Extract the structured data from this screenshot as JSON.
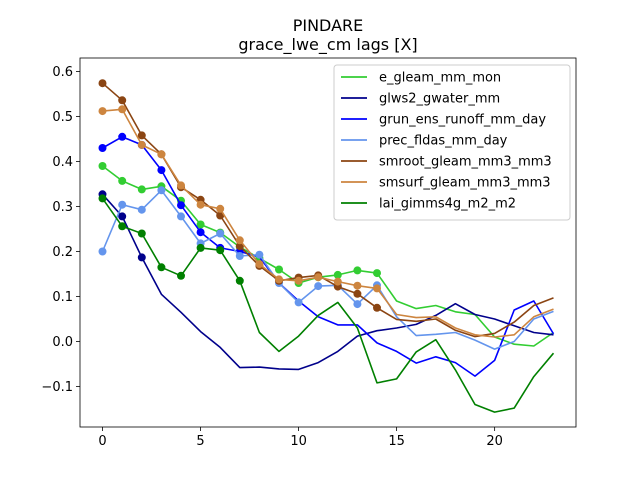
{
  "chart_data": {
    "type": "line",
    "title": "PINDARE",
    "subtitle": "grace_lwe_cm lags [X]",
    "xlabel": "",
    "ylabel": "",
    "xlim": [
      -1.15,
      24.15
    ],
    "ylim": [
      -0.19,
      0.63
    ],
    "xticks": [
      0,
      5,
      10,
      15,
      20
    ],
    "xtick_labels": [
      "0",
      "5",
      "10",
      "15",
      "20"
    ],
    "yticks": [
      -0.1,
      0.0,
      0.1,
      0.2,
      0.3,
      0.4,
      0.5,
      0.6
    ],
    "ytick_labels": [
      "−0.1",
      "0.0",
      "0.1",
      "0.2",
      "0.3",
      "0.4",
      "0.5",
      "0.6"
    ],
    "grid": false,
    "legend_position": "upper right",
    "x": [
      0,
      1,
      2,
      3,
      4,
      5,
      6,
      7,
      8,
      9,
      10,
      11,
      12,
      13,
      14,
      15,
      16,
      17,
      18,
      19,
      20,
      21,
      22,
      23
    ],
    "series": [
      {
        "name": "e_gleam_mm_mon",
        "color": "#32cd32",
        "marker_count": 15,
        "values": [
          0.39,
          0.357,
          0.338,
          0.345,
          0.313,
          0.26,
          0.242,
          0.21,
          0.185,
          0.16,
          0.13,
          0.143,
          0.148,
          0.158,
          0.152,
          0.09,
          0.073,
          0.08,
          0.066,
          0.06,
          0.01,
          -0.006,
          -0.01,
          0.02
        ]
      },
      {
        "name": "glws2_gwater_mm",
        "color": "#00008b",
        "marker_count": 3,
        "values": [
          0.327,
          0.278,
          0.187,
          0.105,
          0.065,
          0.022,
          -0.013,
          -0.058,
          -0.057,
          -0.061,
          -0.062,
          -0.047,
          -0.022,
          0.012,
          0.024,
          0.03,
          0.038,
          0.058,
          0.084,
          0.06,
          0.05,
          0.035,
          0.02,
          0.015
        ]
      },
      {
        "name": "grun_ens_runoff_mm_day",
        "color": "#0000ff",
        "marker_count": 8,
        "values": [
          0.43,
          0.455,
          0.437,
          0.381,
          0.303,
          0.243,
          0.208,
          0.2,
          0.188,
          0.13,
          0.09,
          0.055,
          0.037,
          0.037,
          -0.003,
          -0.022,
          -0.048,
          -0.034,
          -0.047,
          -0.077,
          -0.042,
          0.07,
          0.09,
          0.017
        ]
      },
      {
        "name": "prec_fldas_mm_day",
        "color": "#6495ed",
        "marker_count": 15,
        "values": [
          0.2,
          0.304,
          0.293,
          0.336,
          0.278,
          0.218,
          0.24,
          0.19,
          0.193,
          0.13,
          0.087,
          0.123,
          0.125,
          0.083,
          0.125,
          0.055,
          0.013,
          0.016,
          0.02,
          0.003,
          -0.017,
          0.0,
          0.05,
          0.067
        ]
      },
      {
        "name": "smroot_gleam_mm3_mm3",
        "color": "#8b4513",
        "marker_count": 15,
        "values": [
          0.574,
          0.536,
          0.458,
          0.416,
          0.343,
          0.315,
          0.28,
          0.212,
          0.168,
          0.135,
          0.142,
          0.147,
          0.122,
          0.106,
          0.075,
          0.049,
          0.045,
          0.05,
          0.025,
          0.011,
          0.018,
          0.043,
          0.08,
          0.097
        ]
      },
      {
        "name": "smsurf_gleam_mm3_mm3",
        "color": "#cd853f",
        "marker_count": 15,
        "values": [
          0.512,
          0.516,
          0.437,
          0.416,
          0.347,
          0.304,
          0.295,
          0.225,
          0.172,
          0.138,
          0.135,
          0.143,
          0.133,
          0.124,
          0.118,
          0.06,
          0.053,
          0.055,
          0.03,
          0.015,
          0.01,
          0.015,
          0.055,
          0.072
        ]
      },
      {
        "name": "lai_gimms4g_m2_m2",
        "color": "#008000",
        "marker_count": 8,
        "values": [
          0.318,
          0.256,
          0.24,
          0.165,
          0.146,
          0.208,
          0.203,
          0.135,
          0.02,
          -0.022,
          0.012,
          0.058,
          0.087,
          0.03,
          -0.092,
          -0.083,
          -0.023,
          0.004,
          -0.063,
          -0.14,
          -0.157,
          -0.148,
          -0.078,
          -0.026
        ]
      }
    ]
  }
}
